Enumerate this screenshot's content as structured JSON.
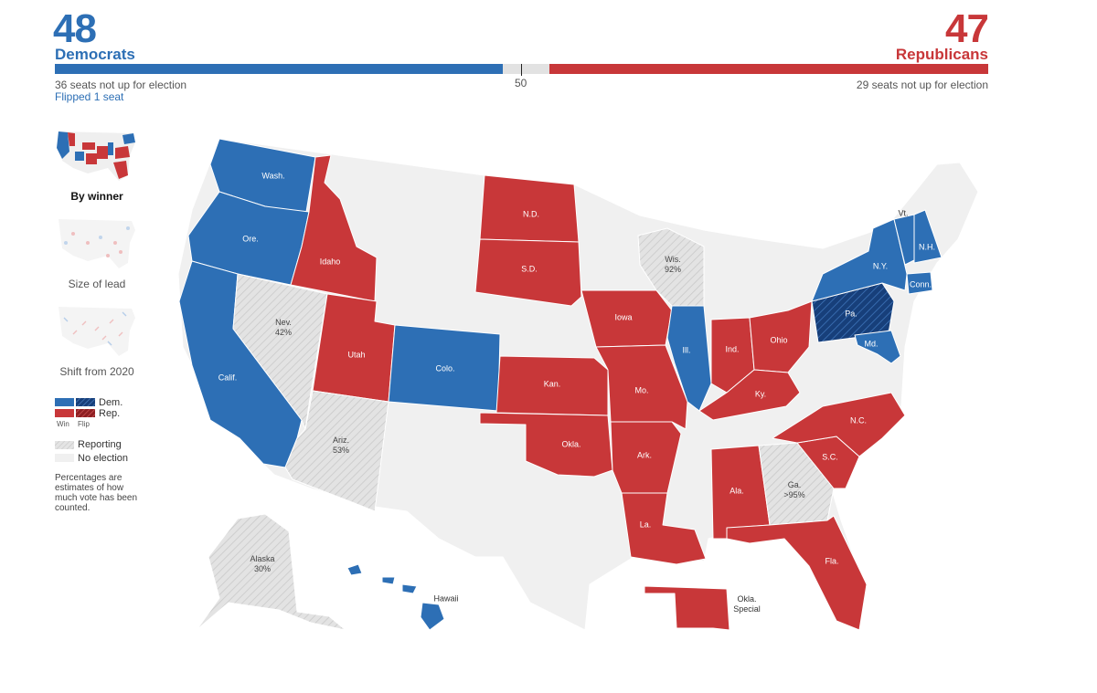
{
  "header": {
    "dem_count": "48",
    "dem_label": "Democrats",
    "dem_note": "36 seats not up for election",
    "dem_flipped": "Flipped 1 seat",
    "rep_count": "47",
    "rep_label": "Republicans",
    "rep_note": "29 seats not up for election",
    "midpoint": "50",
    "dem_fraction": 0.48,
    "rep_fraction": 0.47
  },
  "colors": {
    "dem": "#2d6fb5",
    "dem_flip": "#173f7a",
    "rep": "#c83739",
    "reporting": "#dcdcdc",
    "no_election": "#f0f0f0"
  },
  "view_modes": [
    {
      "label": "By winner",
      "active": true
    },
    {
      "label": "Size of lead",
      "active": false
    },
    {
      "label": "Shift from 2020",
      "active": false
    }
  ],
  "legend": {
    "dem": "Dem.",
    "rep": "Rep.",
    "win": "Win",
    "flip": "Flip",
    "reporting": "Reporting",
    "no_election": "No election",
    "note": "Percentages are estimates of how much vote has been counted."
  },
  "states": {
    "wash": {
      "name": "Wash.",
      "status": "dem"
    },
    "ore": {
      "name": "Ore.",
      "status": "dem"
    },
    "calif": {
      "name": "Calif.",
      "status": "dem"
    },
    "colo": {
      "name": "Colo.",
      "status": "dem"
    },
    "ill": {
      "name": "Ill.",
      "status": "dem"
    },
    "ny": {
      "name": "N.Y.",
      "status": "dem"
    },
    "vt": {
      "name": "Vt.",
      "status": "dem"
    },
    "nh": {
      "name": "N.H.",
      "status": "dem"
    },
    "conn": {
      "name": "Conn.",
      "status": "dem"
    },
    "md": {
      "name": "Md.",
      "status": "dem"
    },
    "hawaii": {
      "name": "Hawaii",
      "status": "dem"
    },
    "pa": {
      "name": "Pa.",
      "status": "dem_flip"
    },
    "idaho": {
      "name": "Idaho",
      "status": "rep"
    },
    "utah": {
      "name": "Utah",
      "status": "rep"
    },
    "nd": {
      "name": "N.D.",
      "status": "rep"
    },
    "sd": {
      "name": "S.D.",
      "status": "rep"
    },
    "iowa": {
      "name": "Iowa",
      "status": "rep"
    },
    "kan": {
      "name": "Kan.",
      "status": "rep"
    },
    "okla": {
      "name": "Okla.",
      "status": "rep"
    },
    "mo": {
      "name": "Mo.",
      "status": "rep"
    },
    "ark": {
      "name": "Ark.",
      "status": "rep"
    },
    "la": {
      "name": "La.",
      "status": "rep"
    },
    "ind": {
      "name": "Ind.",
      "status": "rep"
    },
    "ohio": {
      "name": "Ohio",
      "status": "rep"
    },
    "ky": {
      "name": "Ky.",
      "status": "rep"
    },
    "ala": {
      "name": "Ala.",
      "status": "rep"
    },
    "nc": {
      "name": "N.C.",
      "status": "rep"
    },
    "sc": {
      "name": "S.C.",
      "status": "rep"
    },
    "fla": {
      "name": "Fla.",
      "status": "rep"
    },
    "okla_special": {
      "name": "Okla.",
      "name2": "Special",
      "status": "rep"
    },
    "nev": {
      "name": "Nev.",
      "pct": "42%",
      "status": "reporting"
    },
    "ariz": {
      "name": "Ariz.",
      "pct": "53%",
      "status": "reporting"
    },
    "wis": {
      "name": "Wis.",
      "pct": "92%",
      "status": "reporting"
    },
    "ga": {
      "name": "Ga.",
      "pct": ">95%",
      "status": "reporting"
    },
    "alaska": {
      "name": "Alaska",
      "pct": "30%",
      "status": "reporting"
    }
  }
}
